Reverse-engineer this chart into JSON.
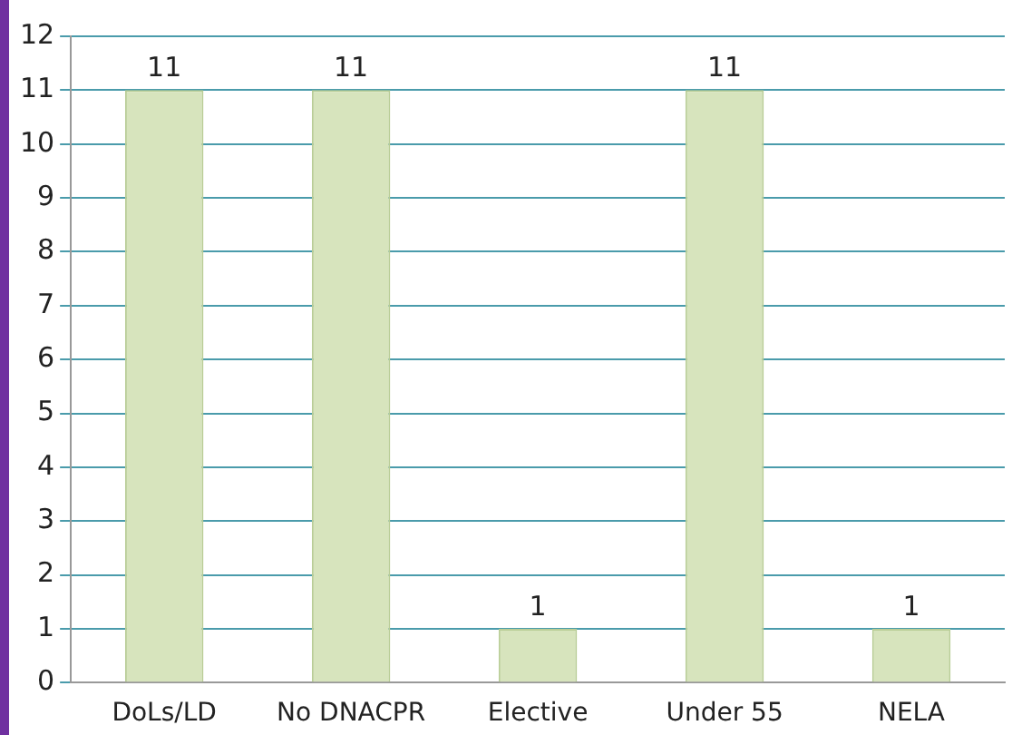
{
  "chart_data": {
    "type": "bar",
    "categories": [
      "DoLs/LD",
      "No DNACPR",
      "Elective",
      "Under 55",
      "NELA"
    ],
    "values": [
      11,
      11,
      1,
      11,
      1
    ],
    "color": "#d7e4bd",
    "ylim": [
      0,
      12
    ],
    "yticks": [
      0,
      1,
      2,
      3,
      4,
      5,
      6,
      7,
      8,
      9,
      10,
      11,
      12
    ],
    "grid": "y",
    "data_labels": true,
    "legend": false
  }
}
